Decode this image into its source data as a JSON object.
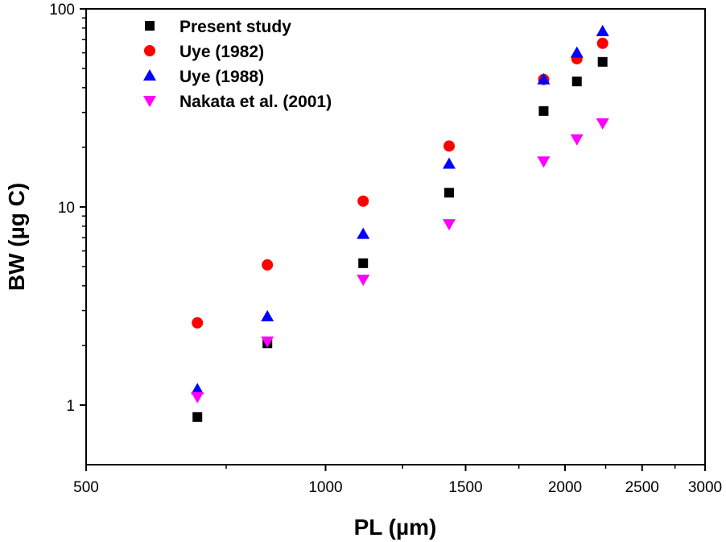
{
  "chart_data": {
    "type": "scatter",
    "title": "",
    "xlabel": "PL (µm)",
    "ylabel": "BW (µg C)",
    "xscale": "log",
    "yscale": "log",
    "xlim": [
      500,
      3000
    ],
    "ylim": [
      0.5,
      100
    ],
    "x_ticks": [
      {
        "value": 500,
        "label": "500"
      },
      {
        "value": 1000,
        "label": "1000"
      },
      {
        "value": 1500,
        "label": "1500"
      },
      {
        "value": 2000,
        "label": "2000"
      },
      {
        "value": 2500,
        "label": "2500"
      },
      {
        "value": 3000,
        "label": "3000"
      }
    ],
    "x_minor_ticks": [
      750,
      1250,
      1750,
      2250,
      2750
    ],
    "y_ticks": [
      {
        "value": 1,
        "label": "1"
      },
      {
        "value": 10,
        "label": "10"
      },
      {
        "value": 100,
        "label": "100"
      }
    ],
    "y_minor_ticks": [
      2,
      3,
      4,
      5,
      6,
      7,
      8,
      9,
      20,
      30,
      40,
      50,
      60,
      70,
      80,
      90
    ],
    "legend_position": "top-left",
    "series": [
      {
        "name": "Present study",
        "marker": "square",
        "color": "#000000",
        "x": [
          690,
          845,
          1115,
          1430,
          1880,
          2070,
          2230
        ],
        "y": [
          0.87,
          2.05,
          5.2,
          11.8,
          30.5,
          43,
          54
        ]
      },
      {
        "name": "Uye (1982)",
        "marker": "circle",
        "color": "#ff0000",
        "x": [
          690,
          845,
          1115,
          1430,
          1880,
          2070,
          2230
        ],
        "y": [
          2.6,
          5.1,
          10.7,
          20.3,
          44,
          56,
          67
        ]
      },
      {
        "name": "Uye (1988)",
        "marker": "triangle-up",
        "color": "#0000ff",
        "x": [
          690,
          845,
          1115,
          1430,
          1880,
          2070,
          2230
        ],
        "y": [
          1.2,
          2.8,
          7.3,
          16.5,
          44,
          60,
          77
        ]
      },
      {
        "name": "Nakata et al. (2001)",
        "marker": "triangle-down",
        "color": "#ff00ff",
        "x": [
          690,
          845,
          1115,
          1430,
          1880,
          2070,
          2230
        ],
        "y": [
          1.1,
          2.1,
          4.3,
          8.2,
          17,
          22,
          26.5
        ]
      }
    ]
  }
}
